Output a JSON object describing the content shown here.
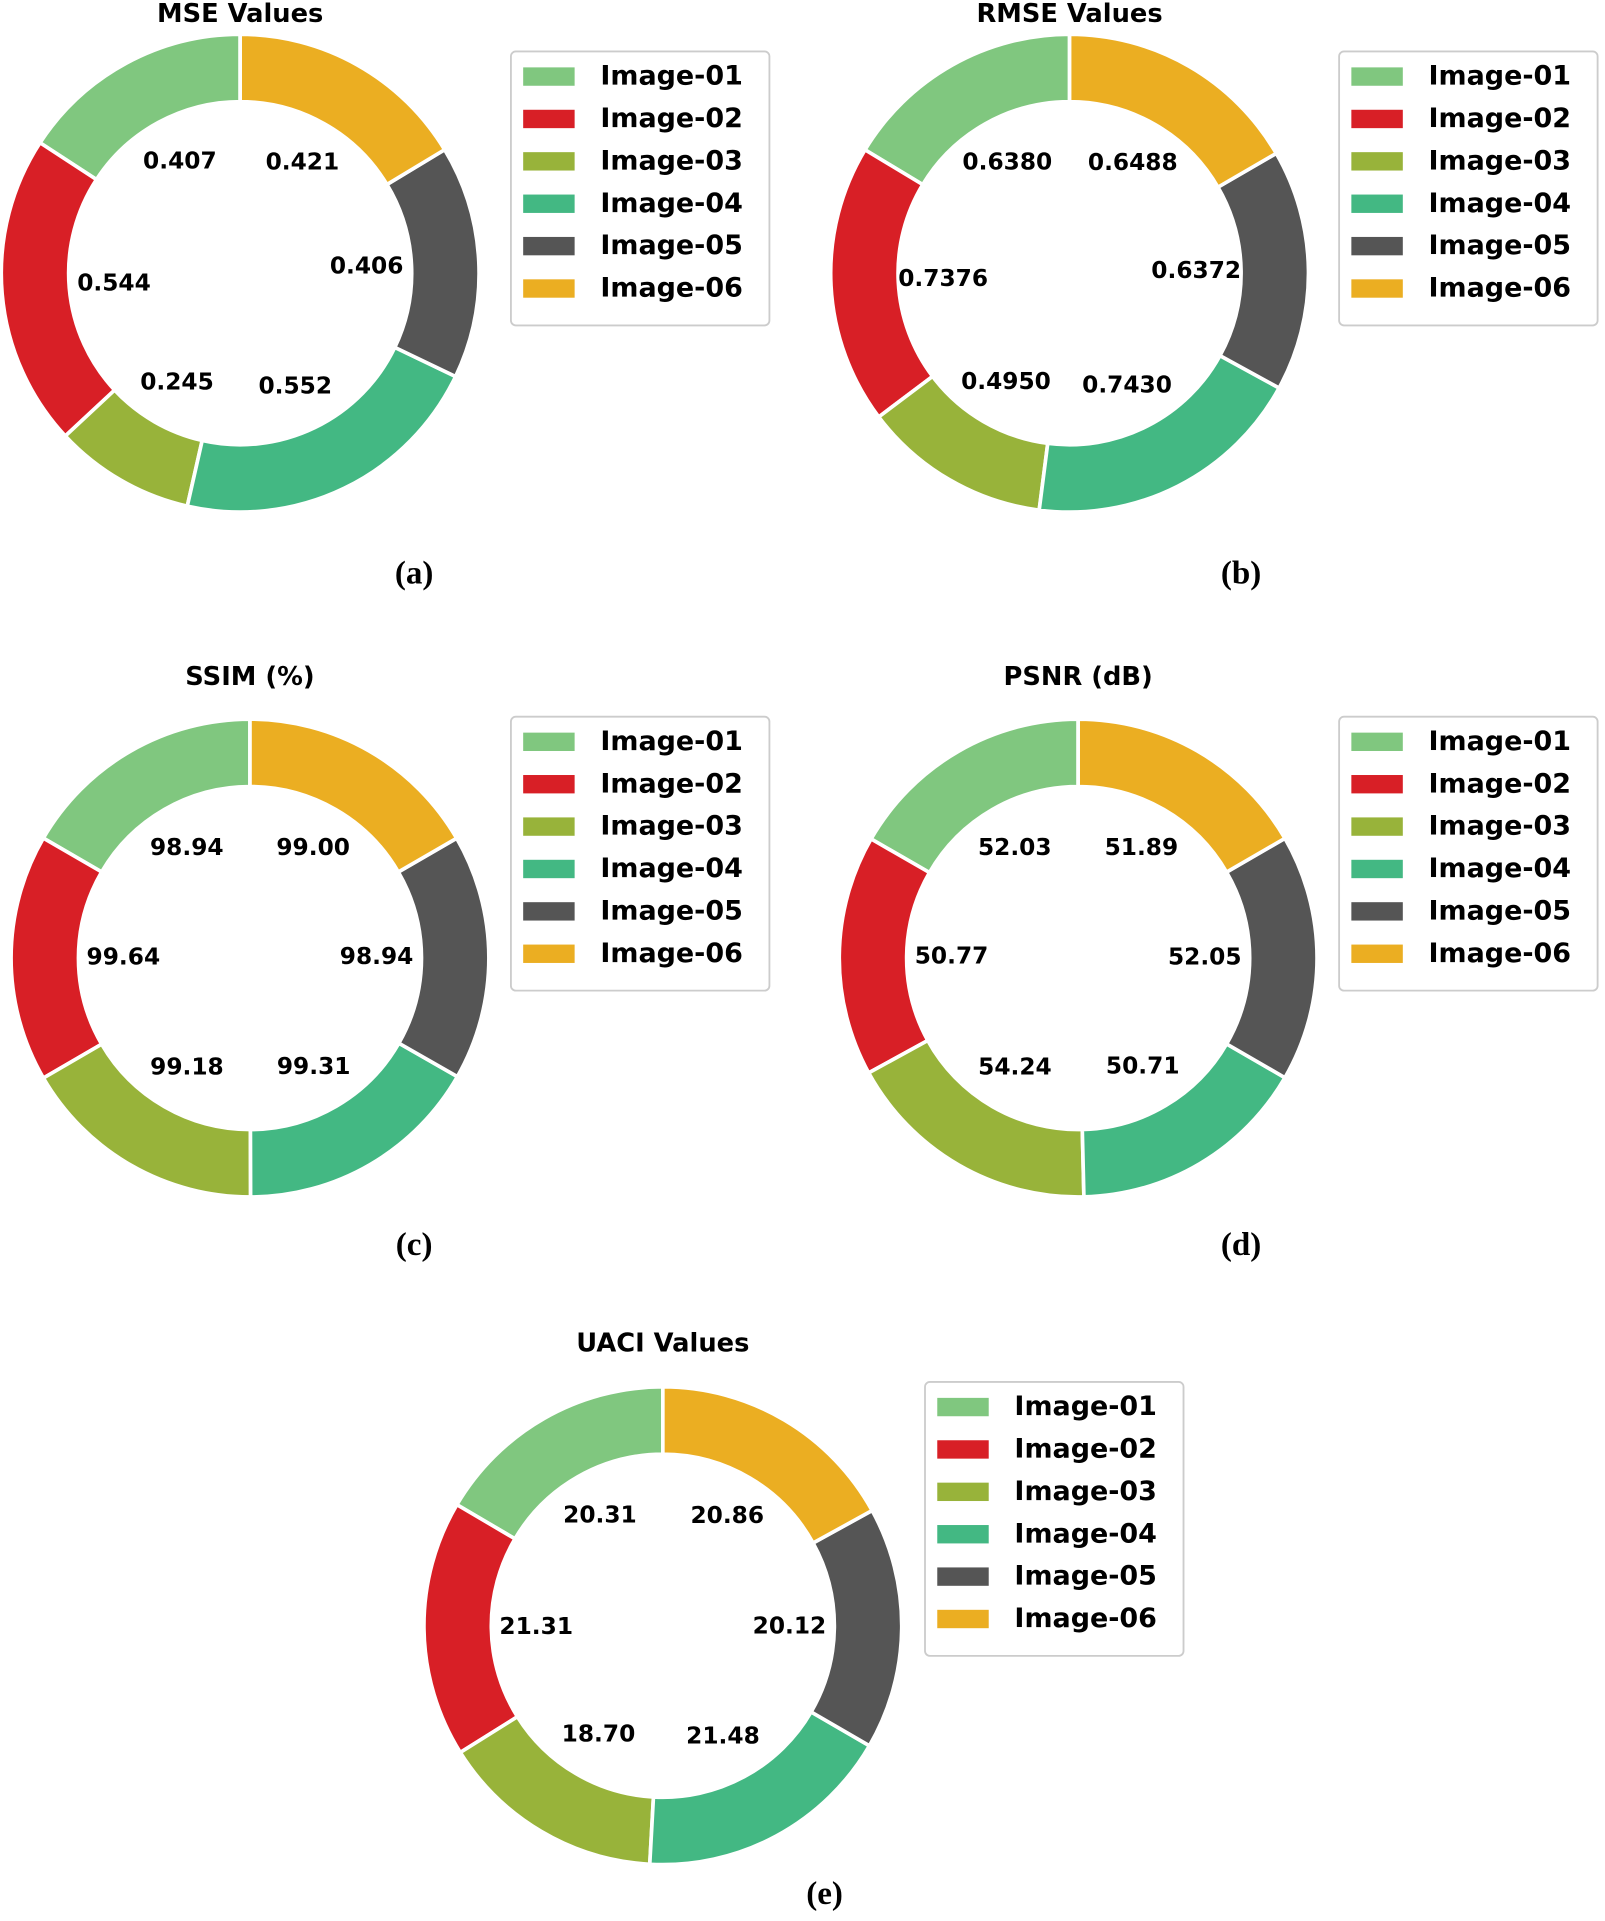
{
  "chart_data": [
    {
      "type": "donut",
      "title": "MSE Values",
      "caption": "(a)",
      "categories": [
        "Image-01",
        "Image-02",
        "Image-03",
        "Image-04",
        "Image-05",
        "Image-06"
      ],
      "values": [
        0.407,
        0.544,
        0.245,
        0.552,
        0.406,
        0.421
      ],
      "value_labels": [
        "0.407",
        "0.544",
        "0.245",
        "0.552",
        "0.406",
        "0.421"
      ],
      "colors": [
        "#80c77f",
        "#d81f26",
        "#98b33a",
        "#43b883",
        "#555555",
        "#ebae22"
      ],
      "legend": "right"
    },
    {
      "type": "donut",
      "title": "RMSE Values",
      "caption": "(b)",
      "categories": [
        "Image-01",
        "Image-02",
        "Image-03",
        "Image-04",
        "Image-05",
        "Image-06"
      ],
      "values": [
        0.638,
        0.7376,
        0.495,
        0.743,
        0.6372,
        0.6488
      ],
      "value_labels": [
        "0.6380",
        "0.7376",
        "0.4950",
        "0.7430",
        "0.6372",
        "0.6488"
      ],
      "colors": [
        "#80c77f",
        "#d81f26",
        "#98b33a",
        "#43b883",
        "#555555",
        "#ebae22"
      ],
      "legend": "right"
    },
    {
      "type": "donut",
      "title": "SSIM (%)",
      "caption": "(c)",
      "categories": [
        "Image-01",
        "Image-02",
        "Image-03",
        "Image-04",
        "Image-05",
        "Image-06"
      ],
      "values": [
        98.94,
        99.64,
        99.18,
        99.31,
        98.94,
        99
      ],
      "value_labels": [
        "98.94",
        "99.64",
        "99.18",
        "99.31",
        "98.94",
        "99.00"
      ],
      "colors": [
        "#80c77f",
        "#d81f26",
        "#98b33a",
        "#43b883",
        "#555555",
        "#ebae22"
      ],
      "legend": "right"
    },
    {
      "type": "donut",
      "title": "PSNR (dB)",
      "caption": "(d)",
      "categories": [
        "Image-01",
        "Image-02",
        "Image-03",
        "Image-04",
        "Image-05",
        "Image-06"
      ],
      "values": [
        52.03,
        50.77,
        54.24,
        50.71,
        52.05,
        51.89
      ],
      "value_labels": [
        "52.03",
        "50.77",
        "54.24",
        "50.71",
        "52.05",
        "51.89"
      ],
      "colors": [
        "#80c77f",
        "#d81f26",
        "#98b33a",
        "#43b883",
        "#555555",
        "#ebae22"
      ],
      "legend": "right"
    },
    {
      "type": "donut",
      "title": "UACI Values",
      "caption": "(e)",
      "categories": [
        "Image-01",
        "Image-02",
        "Image-03",
        "Image-04",
        "Image-05",
        "Image-06"
      ],
      "values": [
        20.31,
        21.31,
        18.7,
        21.48,
        20.12,
        20.86
      ],
      "value_labels": [
        "20.31",
        "21.31",
        "18.70",
        "21.48",
        "20.12",
        "20.86"
      ],
      "colors": [
        "#80c77f",
        "#d81f26",
        "#98b33a",
        "#43b883",
        "#555555",
        "#ebae22"
      ],
      "legend": "right"
    }
  ]
}
